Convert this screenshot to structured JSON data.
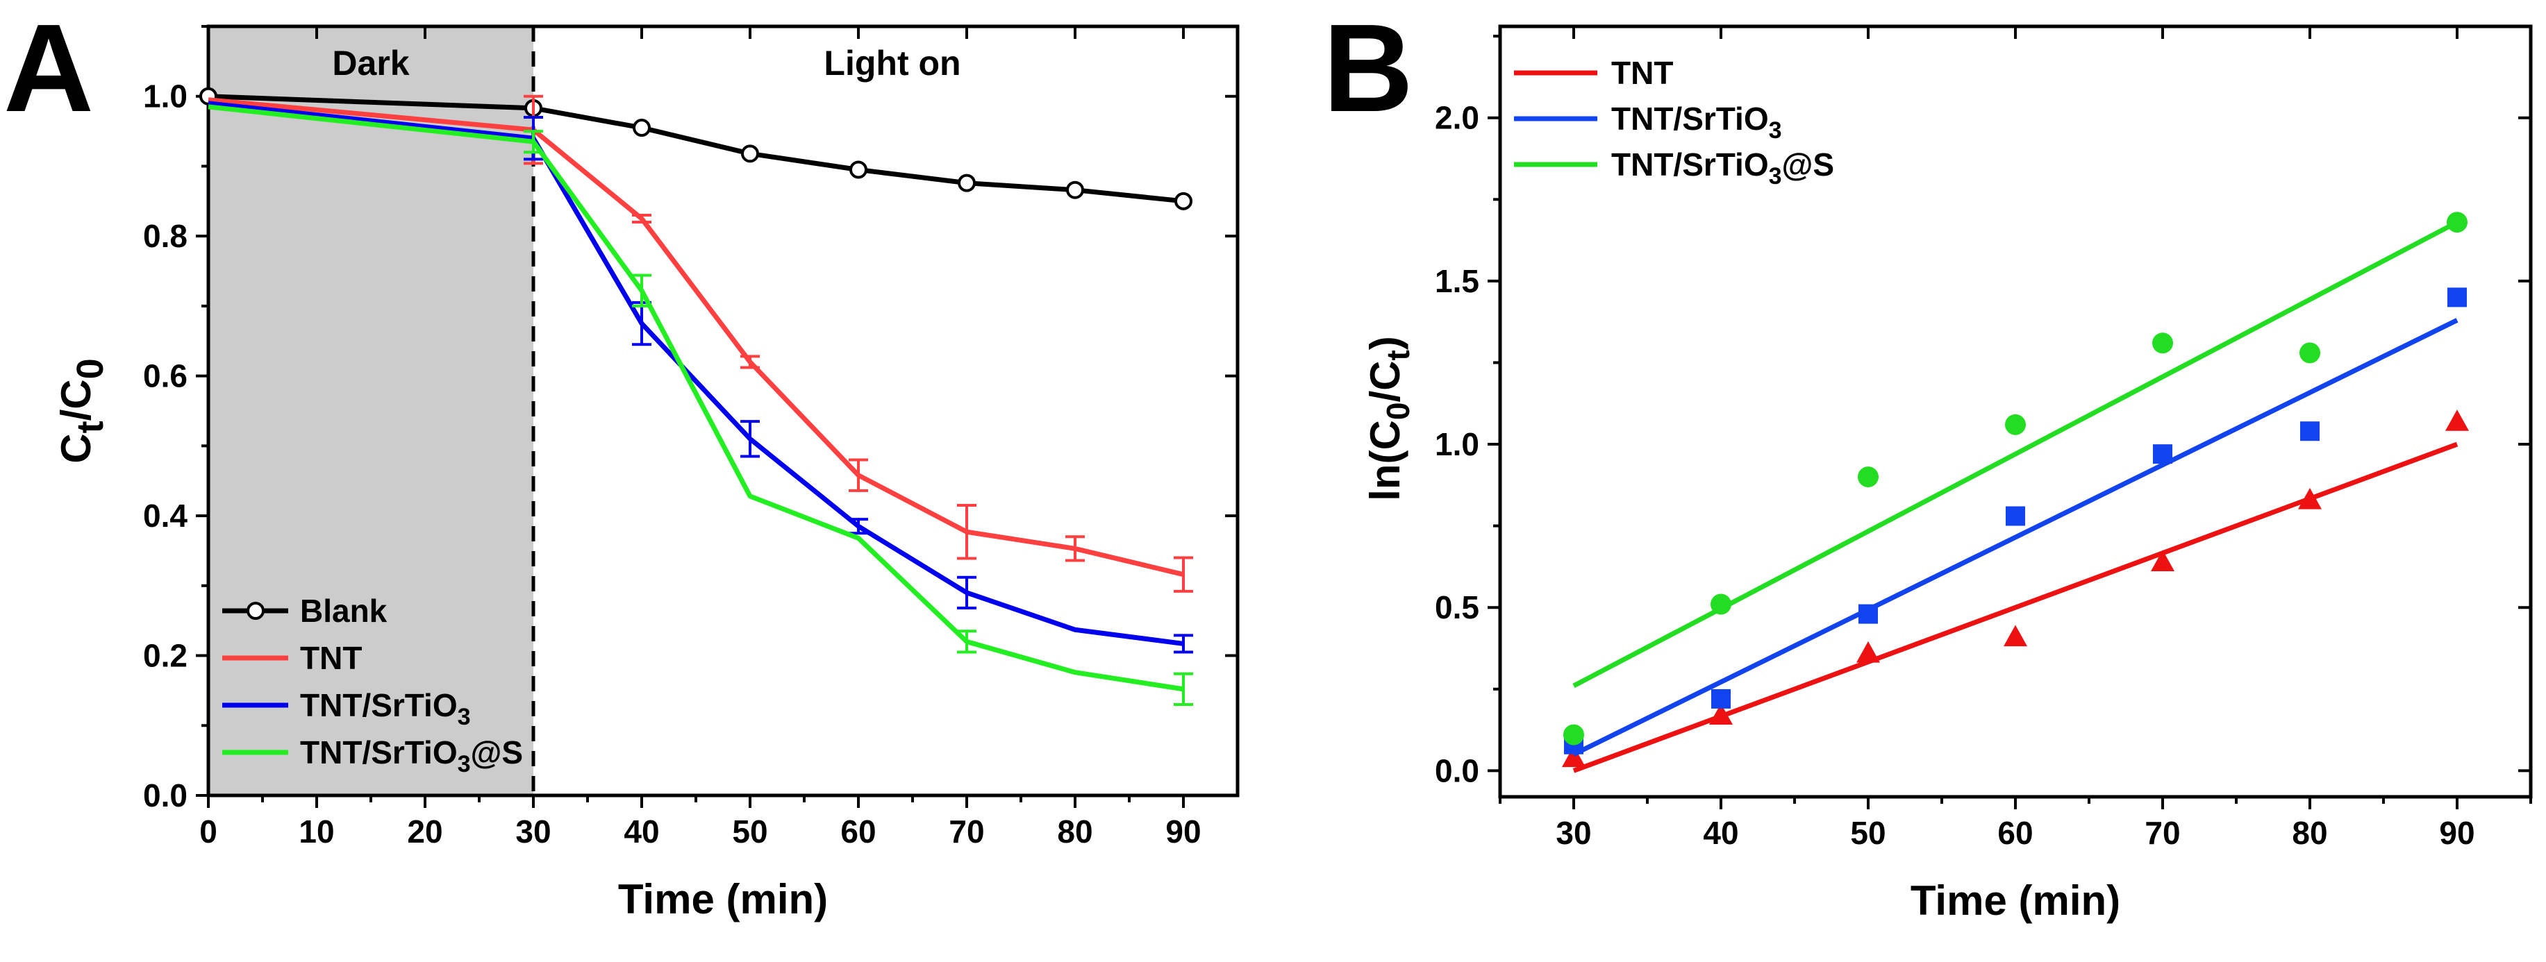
{
  "chart_data": [
    {
      "panel": "A",
      "type": "line",
      "xlabel": "Time (min)",
      "ylabel": "Ct/C0",
      "ylabel_parts": {
        "main": "C",
        "sub1": "t",
        "slash": "/C",
        "sub2": "0"
      },
      "xlim": [
        0,
        95
      ],
      "ylim": [
        0,
        1.1
      ],
      "x_ticks": [
        "0",
        "10",
        "20",
        "30",
        "40",
        "50",
        "60",
        "70",
        "80",
        "90"
      ],
      "y_ticks": [
        "0.0",
        "0.2",
        "0.4",
        "0.6",
        "0.8",
        "1.0"
      ],
      "regions": [
        {
          "label": "Dark",
          "from": 0,
          "to": 30,
          "fill": "#cccccc"
        },
        {
          "label": "Light on",
          "from": 30,
          "to": 95,
          "fill": "#ffffff"
        }
      ],
      "legend_position": "bottom-left",
      "series": [
        {
          "name": "Blank",
          "label_main": "Blank",
          "label_sub": "",
          "label_tail": "",
          "color": "#000000",
          "marker": "open-circle",
          "x": [
            0,
            30,
            40,
            50,
            60,
            70,
            80,
            90
          ],
          "values": [
            1.0,
            0.983,
            0.955,
            0.918,
            0.895,
            0.876,
            0.866,
            0.85
          ],
          "errors": [
            0,
            0,
            0,
            0,
            0,
            0,
            0,
            0
          ]
        },
        {
          "name": "TNT",
          "label_main": "TNT",
          "label_sub": "",
          "label_tail": "",
          "color": "#ff4040",
          "marker": "none",
          "x": [
            0,
            30,
            40,
            50,
            60,
            70,
            80,
            90
          ],
          "values": [
            0.995,
            0.952,
            0.825,
            0.62,
            0.458,
            0.377,
            0.353,
            0.316
          ],
          "errors": [
            0,
            0.048,
            0.005,
            0.008,
            0.022,
            0.038,
            0.017,
            0.024
          ]
        },
        {
          "name": "TNT/SrTiO3",
          "label_main": "TNT/SrTiO",
          "label_sub": "3",
          "label_tail": "",
          "color": "#0000ee",
          "marker": "none",
          "x": [
            0,
            30,
            40,
            50,
            60,
            70,
            80,
            90
          ],
          "values": [
            0.99,
            0.94,
            0.675,
            0.51,
            0.385,
            0.29,
            0.237,
            0.217
          ],
          "errors": [
            0,
            0.03,
            0.03,
            0.025,
            0.01,
            0.022,
            0,
            0.012
          ]
        },
        {
          "name": "TNT/SrTiO3@S",
          "label_main": "TNT/SrTiO",
          "label_sub": "3",
          "label_tail": "@S",
          "color": "#22ee22",
          "marker": "none",
          "x": [
            0,
            30,
            40,
            50,
            60,
            70,
            80,
            90
          ],
          "values": [
            0.985,
            0.935,
            0.722,
            0.428,
            0.368,
            0.22,
            0.176,
            0.152
          ],
          "errors": [
            0,
            0.015,
            0.022,
            0,
            0,
            0.015,
            0,
            0.022
          ]
        }
      ]
    },
    {
      "panel": "B",
      "type": "scatter",
      "xlabel": "Time (min)",
      "ylabel": "ln(C0/Ct)",
      "ylabel_parts": {
        "main": "ln(C",
        "sub1": "0",
        "slash": "/C",
        "sub2": "t",
        "tail": ")"
      },
      "xlim": [
        25,
        95
      ],
      "ylim": [
        -0.08,
        2.28
      ],
      "x_ticks": [
        "30",
        "40",
        "50",
        "60",
        "70",
        "80",
        "90"
      ],
      "y_ticks": [
        "0.0",
        "0.5",
        "1.0",
        "1.5",
        "2.0"
      ],
      "legend_position": "top-left",
      "series": [
        {
          "name": "TNT",
          "label_main": "TNT",
          "label_sub": "",
          "label_tail": "",
          "color": "#ee1111",
          "marker": "triangle",
          "x": [
            30,
            40,
            50,
            60,
            70,
            80,
            90
          ],
          "values": [
            0.04,
            0.17,
            0.36,
            0.41,
            0.64,
            0.83,
            1.07
          ],
          "fit": [
            0.0,
            1.0
          ]
        },
        {
          "name": "TNT/SrTiO3",
          "label_main": "TNT/SrTiO",
          "label_sub": "3",
          "label_tail": "",
          "color": "#1144ee",
          "marker": "square",
          "x": [
            30,
            40,
            50,
            60,
            70,
            80,
            90
          ],
          "values": [
            0.08,
            0.22,
            0.48,
            0.78,
            0.97,
            1.04,
            1.45
          ],
          "fit": [
            0.05,
            1.38
          ]
        },
        {
          "name": "TNT/SrTiO3@S",
          "label_main": "TNT/SrTiO",
          "label_sub": "3",
          "label_tail": "@S",
          "color": "#22dd22",
          "marker": "circle",
          "x": [
            30,
            40,
            50,
            60,
            70,
            80,
            90
          ],
          "values": [
            0.11,
            0.51,
            0.9,
            1.06,
            1.31,
            1.28,
            1.68
          ],
          "fit": [
            0.26,
            1.68
          ]
        }
      ]
    }
  ]
}
